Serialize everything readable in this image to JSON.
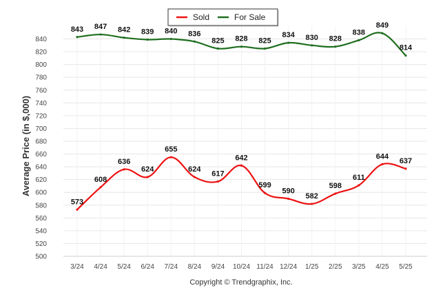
{
  "chart_data": {
    "type": "line",
    "categories": [
      "3/24",
      "4/24",
      "5/24",
      "6/24",
      "7/24",
      "8/24",
      "9/24",
      "10/24",
      "11/24",
      "12/24",
      "1/25",
      "2/25",
      "3/25",
      "4/25",
      "5/25"
    ],
    "series": [
      {
        "name": "Sold",
        "color": "#ee1111",
        "values": [
          573,
          608,
          636,
          624,
          655,
          624,
          617,
          642,
          599,
          590,
          582,
          598,
          611,
          644,
          637
        ]
      },
      {
        "name": "For Sale",
        "color": "#1f6e1f",
        "values": [
          843,
          847,
          842,
          839,
          840,
          836,
          825,
          828,
          825,
          834,
          830,
          828,
          838,
          849,
          814
        ]
      }
    ],
    "ylabel": "Average Price (in $,000)",
    "xlabel": "",
    "ylim": [
      500,
      860
    ],
    "yticks": [
      500,
      520,
      540,
      560,
      580,
      600,
      620,
      640,
      660,
      680,
      700,
      720,
      740,
      760,
      780,
      800,
      820,
      840
    ],
    "grid": true,
    "legend_position": "top-center"
  },
  "footer": {
    "copyright": "Copyright © Trendgraphix, Inc."
  }
}
